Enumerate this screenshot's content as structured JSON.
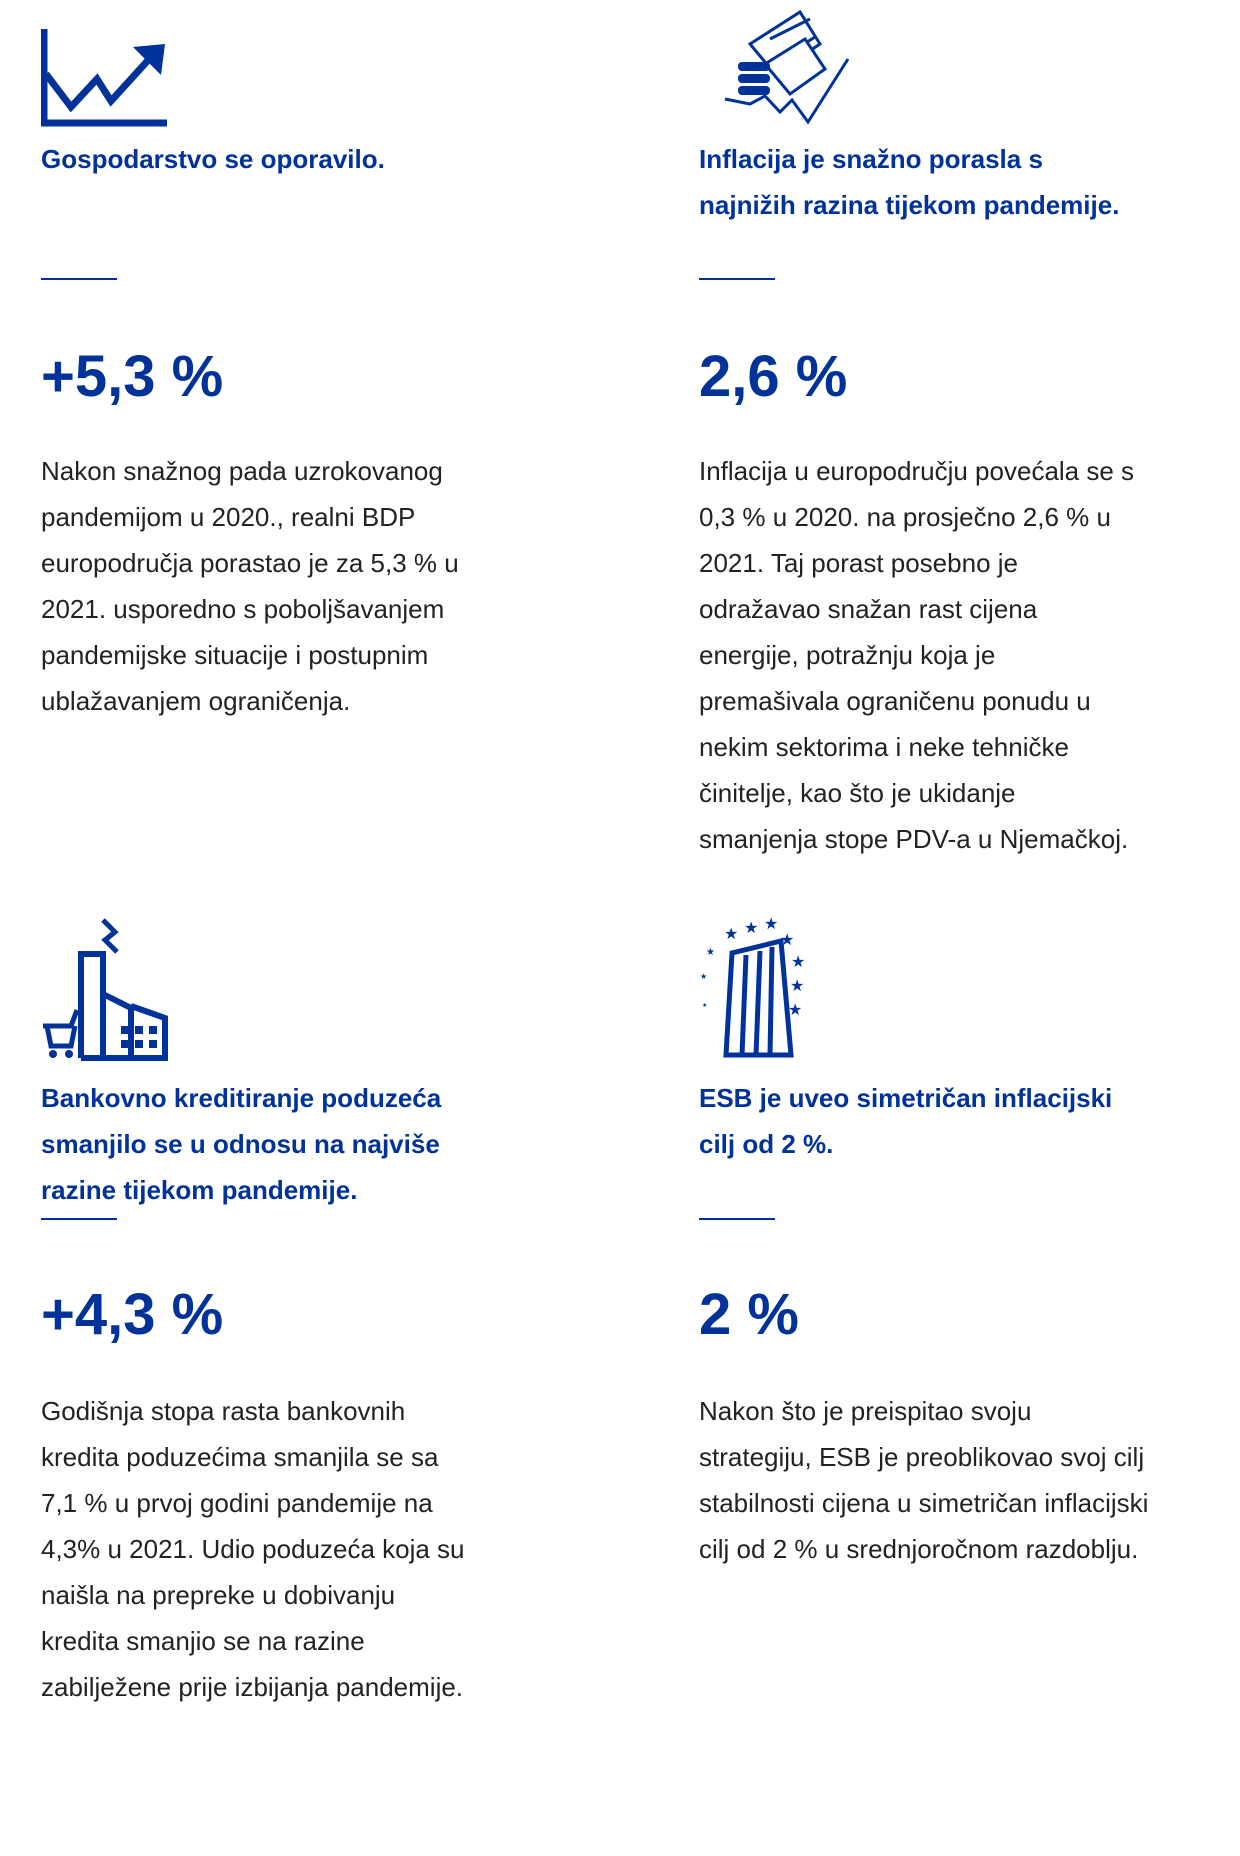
{
  "cards": [
    {
      "heading": [
        "Gospodarstvo se oporavilo."
      ],
      "figure": "+5,3 %",
      "body": [
        "Nakon snažnog pada uzrokovanog",
        "pandemijom u 2020., realni BDP",
        "europodručja porastao je za 5,3 % u",
        "2021. usporedno s poboljšavanjem",
        "pandemijske situacije i postupnim",
        "ublažavanjem ograničenja."
      ]
    },
    {
      "heading": [
        "Inflacija je snažno porasla s",
        "najnižih razina tijekom pandemije."
      ],
      "figure": "2,6 %",
      "body": [
        "Inflacija u europodručju povećala se s",
        "0,3 % u 2020. na prosječno 2,6 % u",
        "2021. Taj porast posebno je",
        "odražavao snažan rast cijena",
        "energije, potražnju koja je",
        "premašivala ograničenu ponudu u",
        "nekim sektorima i neke tehničke",
        "činitelje, kao što je ukidanje",
        "smanjenja stope PDV-a u Njemačkoj."
      ]
    },
    {
      "heading": [
        "Bankovno kreditiranje poduzeća",
        "smanjilo se u odnosu na najviše",
        "razine tijekom pandemije."
      ],
      "figure": "+4,3 %",
      "body": [
        "Godišnja stopa rasta bankovnih",
        "kredita poduzećima smanjila se sa",
        "7,1 % u prvoj godini pandemije na",
        "4,3% u 2021. Udio poduzeća koja su",
        "naišla na prepreke u dobivanju",
        "kredita smanjio se na razine",
        "zabilježene prije izbijanja pandemije."
      ]
    },
    {
      "heading": [
        "ESB je uveo simetričan inflacijski",
        "cilj od 2 %."
      ],
      "figure": "2 %",
      "body": [
        "Nakon što je preispitao svoju",
        "strategiju, ESB je preoblikovao svoj cilj",
        "stabilnosti cijena u simetričan inflacijski",
        "cilj od 2 % u srednjoročnom razdoblju."
      ]
    }
  ]
}
